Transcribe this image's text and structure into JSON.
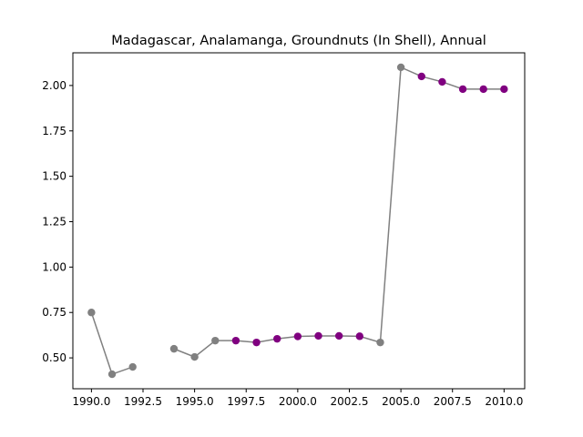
{
  "chart_data": {
    "type": "line",
    "title": "Madagascar, Analamanga, Groundnuts (In Shell), Annual",
    "xlabel": "",
    "ylabel": "",
    "xlim": [
      1989.1,
      2011.0
    ],
    "ylim": [
      0.33,
      2.18
    ],
    "x_ticks": [
      1990.0,
      1992.5,
      1995.0,
      1997.5,
      2000.0,
      2002.5,
      2005.0,
      2007.5,
      2010.0
    ],
    "x_tick_labels": [
      "1990.0",
      "1992.5",
      "1995.0",
      "1997.5",
      "2000.0",
      "2002.5",
      "2005.0",
      "2007.5",
      "2010.0"
    ],
    "y_ticks": [
      0.5,
      0.75,
      1.0,
      1.25,
      1.5,
      1.75,
      2.0
    ],
    "y_tick_labels": [
      "0.50",
      "0.75",
      "1.00",
      "1.25",
      "1.50",
      "1.75",
      "2.00"
    ],
    "grid": false,
    "line_color": "#808080",
    "colors": {
      "gray": "#808080",
      "purple": "#800080"
    },
    "points": [
      {
        "x": 1990,
        "y": 0.75,
        "color": "gray"
      },
      {
        "x": 1991,
        "y": 0.41,
        "color": "gray"
      },
      {
        "x": 1992,
        "y": 0.45,
        "color": "gray"
      },
      {
        "x": 1993,
        "y": null,
        "color": "gray"
      },
      {
        "x": 1994,
        "y": 0.55,
        "color": "gray"
      },
      {
        "x": 1995,
        "y": 0.505,
        "color": "gray"
      },
      {
        "x": 1996,
        "y": 0.595,
        "color": "gray"
      },
      {
        "x": 1997,
        "y": 0.595,
        "color": "purple"
      },
      {
        "x": 1998,
        "y": 0.585,
        "color": "purple"
      },
      {
        "x": 1999,
        "y": 0.605,
        "color": "purple"
      },
      {
        "x": 2000,
        "y": 0.618,
        "color": "purple"
      },
      {
        "x": 2001,
        "y": 0.621,
        "color": "purple"
      },
      {
        "x": 2002,
        "y": 0.621,
        "color": "purple"
      },
      {
        "x": 2003,
        "y": 0.619,
        "color": "purple"
      },
      {
        "x": 2004,
        "y": 0.585,
        "color": "gray"
      },
      {
        "x": 2005,
        "y": 2.1,
        "color": "gray"
      },
      {
        "x": 2006,
        "y": 2.05,
        "color": "purple"
      },
      {
        "x": 2007,
        "y": 2.02,
        "color": "purple"
      },
      {
        "x": 2008,
        "y": 1.98,
        "color": "purple"
      },
      {
        "x": 2009,
        "y": 1.98,
        "color": "purple"
      },
      {
        "x": 2010,
        "y": 1.98,
        "color": "purple"
      }
    ]
  }
}
